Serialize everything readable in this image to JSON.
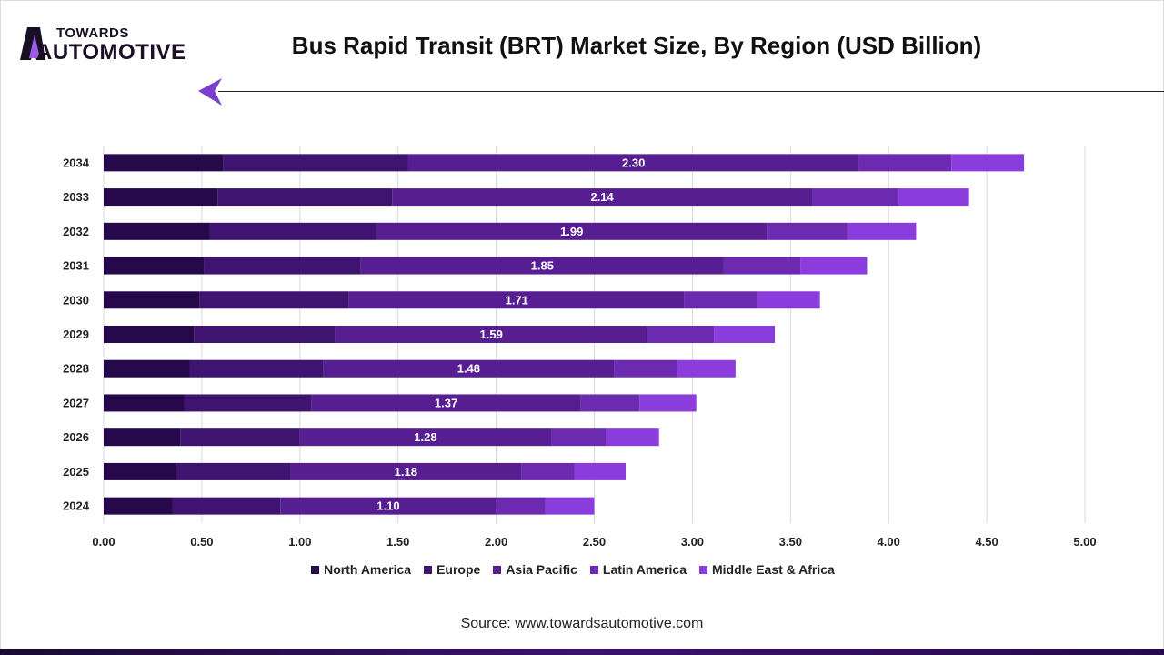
{
  "logo": {
    "line1": "TOWARDS",
    "line2": "AUTOMOTIVE"
  },
  "chart_data": {
    "type": "bar",
    "orientation": "horizontal",
    "stacked": true,
    "title": "Bus Rapid Transit (BRT) Market Size, By Region (USD Billion)",
    "categories": [
      "2034",
      "2033",
      "2032",
      "2031",
      "2030",
      "2029",
      "2028",
      "2027",
      "2026",
      "2025",
      "2024"
    ],
    "series": [
      {
        "name": "North America",
        "color": "#26094a",
        "values": [
          0.61,
          0.58,
          0.54,
          0.51,
          0.49,
          0.46,
          0.44,
          0.41,
          0.39,
          0.37,
          0.35
        ]
      },
      {
        "name": "Europe",
        "color": "#3f1470",
        "values": [
          0.94,
          0.89,
          0.85,
          0.8,
          0.76,
          0.72,
          0.68,
          0.65,
          0.61,
          0.58,
          0.55
        ]
      },
      {
        "name": "Asia Pacific",
        "color": "#561e91",
        "values": [
          2.3,
          2.14,
          1.99,
          1.85,
          1.71,
          1.59,
          1.48,
          1.37,
          1.28,
          1.18,
          1.1
        ],
        "labels": [
          "2.30",
          "2.14",
          "1.99",
          "1.85",
          "1.71",
          "1.59",
          "1.48",
          "1.37",
          "1.28",
          "1.18",
          "1.10"
        ]
      },
      {
        "name": "Latin America",
        "color": "#6c2ab0",
        "values": [
          0.47,
          0.44,
          0.41,
          0.39,
          0.37,
          0.34,
          0.32,
          0.3,
          0.28,
          0.27,
          0.25
        ]
      },
      {
        "name": "Middle East & Africa",
        "color": "#8a3cdc",
        "values": [
          0.37,
          0.36,
          0.35,
          0.34,
          0.32,
          0.31,
          0.3,
          0.29,
          0.27,
          0.26,
          0.25
        ]
      }
    ],
    "xlim": [
      0,
      5
    ],
    "xticks": [
      "0.00",
      "0.50",
      "1.00",
      "1.50",
      "2.00",
      "2.50",
      "3.00",
      "3.50",
      "4.00",
      "4.50",
      "5.00"
    ],
    "grid": true,
    "legend_position": "bottom"
  },
  "source": "Source: www.towardsautomotive.com"
}
